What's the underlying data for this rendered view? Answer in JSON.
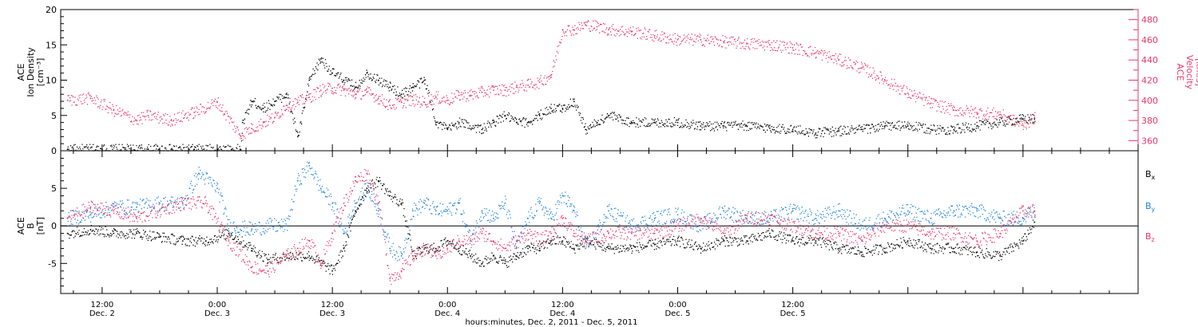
{
  "chart_data": [
    {
      "type": "scatter",
      "panel": "ion-density-velocity",
      "ylabel_lines": [
        "ACE",
        "Ion Density",
        "[cm⁻³]"
      ],
      "ylim": [
        0,
        20
      ],
      "yticks": [
        0,
        5,
        10,
        15,
        20
      ],
      "y2label_lines": [
        "ACE",
        "Velocity",
        "[km/s]"
      ],
      "y2lim": [
        350,
        490
      ],
      "y2ticks": [
        360,
        380,
        400,
        420,
        440,
        460,
        480
      ],
      "series": [
        {
          "axis": "left",
          "color": "#000000",
          "x": [
            -0.15,
            0,
            0.1,
            0.2,
            0.3,
            0.4,
            0.5,
            0.6,
            0.61,
            0.65,
            0.7,
            0.75,
            0.8,
            0.85,
            0.9,
            0.95,
            1.0,
            1.05,
            1.1,
            1.15,
            1.2,
            1.25,
            1.3,
            1.35,
            1.4,
            1.45,
            1.5,
            1.55,
            1.65,
            1.7,
            1.75,
            1.8,
            1.85,
            1.9,
            1.95,
            2.0,
            2.05,
            2.1,
            2.15,
            2.2,
            2.3,
            2.4,
            2.5,
            2.6,
            2.7,
            2.8,
            2.9,
            3.0,
            3.1,
            3.2,
            3.3,
            3.4,
            3.5,
            3.6,
            3.7,
            3.8,
            3.9,
            4.0,
            4.05
          ],
          "y": [
            0.2,
            0.2,
            0.2,
            0.2,
            0.2,
            0.2,
            0.2,
            0.2,
            4,
            7,
            6,
            7,
            8,
            2,
            10,
            13,
            11,
            10,
            9,
            11,
            10,
            9,
            8,
            9,
            10,
            4,
            3,
            4,
            3,
            4,
            5,
            4,
            4,
            5,
            6,
            6,
            7,
            3,
            4,
            5,
            4,
            4,
            4,
            3.5,
            3.5,
            3.5,
            3.2,
            3,
            2.5,
            2.8,
            3,
            3.5,
            3.5,
            3,
            3,
            3.5,
            4,
            4.5,
            4.5
          ]
        },
        {
          "axis": "right",
          "color": "#e8386a",
          "x": [
            -0.15,
            -0.05,
            0.05,
            0.15,
            0.2,
            0.3,
            0.4,
            0.5,
            0.6,
            0.65,
            0.7,
            0.75,
            0.8,
            0.85,
            0.9,
            0.95,
            1.0,
            1.05,
            1.1,
            1.15,
            1.2,
            1.25,
            1.3,
            1.35,
            1.4,
            1.45,
            1.5,
            1.55,
            1.6,
            1.65,
            1.7,
            1.75,
            1.8,
            1.85,
            1.9,
            1.95,
            2.0,
            2.05,
            2.1,
            2.15,
            2.2,
            2.3,
            2.4,
            2.5,
            2.6,
            2.7,
            2.8,
            2.9,
            3.0,
            3.1,
            3.2,
            3.3,
            3.4,
            3.5,
            3.6,
            3.7,
            3.8,
            3.9,
            4.0,
            4.05
          ],
          "y": [
            400,
            402,
            390,
            380,
            385,
            380,
            388,
            398,
            365,
            372,
            378,
            383,
            395,
            398,
            403,
            410,
            412,
            410,
            406,
            408,
            402,
            395,
            398,
            400,
            398,
            403,
            400,
            405,
            405,
            408,
            410,
            410,
            413,
            415,
            418,
            425,
            470,
            470,
            475,
            473,
            470,
            468,
            464,
            460,
            460,
            458,
            456,
            455,
            452,
            447,
            440,
            432,
            420,
            407,
            397,
            390,
            388,
            386,
            375,
            383
          ]
        }
      ]
    },
    {
      "type": "scatter",
      "panel": "imf-components",
      "ylabel_lines": [
        "ACE",
        "B",
        "[nT]"
      ],
      "ylim": [
        -9,
        10
      ],
      "yticks": [
        -5,
        0,
        5
      ],
      "legend": [
        {
          "label": "B",
          "sub": "x",
          "color": "#000000"
        },
        {
          "label": "B",
          "sub": "y",
          "color": "#1e82dc"
        },
        {
          "label": "B",
          "sub": "z",
          "color": "#e8386a"
        }
      ],
      "series": [
        {
          "name": "Bx",
          "color": "#000000",
          "x": [
            -0.15,
            -0.05,
            0.05,
            0.15,
            0.25,
            0.35,
            0.45,
            0.55,
            0.65,
            0.72,
            0.8,
            0.9,
            1.0,
            1.05,
            1.1,
            1.15,
            1.2,
            1.25,
            1.3,
            1.35,
            1.4,
            1.45,
            1.5,
            1.55,
            1.6,
            1.65,
            1.7,
            1.75,
            1.8,
            1.85,
            1.9,
            1.95,
            2.0,
            2.05,
            2.1,
            2.2,
            2.3,
            2.4,
            2.5,
            2.6,
            2.7,
            2.8,
            2.9,
            3.0,
            3.1,
            3.2,
            3.3,
            3.4,
            3.5,
            3.6,
            3.7,
            3.8,
            3.9,
            4.0,
            4.05
          ],
          "y": [
            -1,
            -0.5,
            -1,
            -1,
            -1.5,
            -2,
            -2,
            -1,
            -3,
            -4.5,
            -4,
            -4,
            -6,
            -3,
            2,
            5,
            6,
            4,
            3,
            -4,
            -3,
            -3,
            -2,
            -3,
            -4,
            -5,
            -4,
            -5,
            -4,
            -3,
            -3,
            -2,
            -2,
            -3,
            -2,
            -3,
            -3,
            -2.5,
            -2,
            -3,
            -2,
            -2,
            -1,
            -2,
            -2,
            -3,
            -3.5,
            -3,
            -2,
            -3,
            -3,
            -3.5,
            -4,
            -2,
            0.5
          ]
        },
        {
          "name": "By",
          "color": "#1e82dc",
          "x": [
            -0.15,
            -0.05,
            0.05,
            0.15,
            0.25,
            0.35,
            0.42,
            0.5,
            0.55,
            0.65,
            0.72,
            0.8,
            0.85,
            0.9,
            0.95,
            1.0,
            1.05,
            1.1,
            1.15,
            1.2,
            1.25,
            1.3,
            1.35,
            1.4,
            1.45,
            1.5,
            1.55,
            1.6,
            1.65,
            1.7,
            1.75,
            1.8,
            1.85,
            1.9,
            1.95,
            2.0,
            2.05,
            2.1,
            2.2,
            2.3,
            2.4,
            2.5,
            2.6,
            2.7,
            2.8,
            2.9,
            3.0,
            3.1,
            3.2,
            3.3,
            3.4,
            3.5,
            3.6,
            3.7,
            3.8,
            3.9,
            4.0,
            4.05
          ],
          "y": [
            1,
            1.5,
            2.5,
            2.5,
            3,
            3,
            7,
            5,
            0,
            -0.5,
            0,
            0,
            6,
            8,
            5,
            3,
            -1,
            3,
            5,
            2,
            -3,
            -4,
            2,
            3,
            2,
            2,
            3,
            -2,
            2,
            1,
            3,
            -3,
            1,
            3,
            1,
            4,
            2,
            -3,
            2,
            0,
            1,
            1.5,
            0,
            2,
            1,
            1,
            2,
            1,
            2,
            0,
            1,
            2,
            1,
            2,
            2,
            1,
            1,
            2
          ]
        },
        {
          "name": "Bz",
          "color": "#e8386a",
          "x": [
            -0.15,
            -0.05,
            0.05,
            0.15,
            0.25,
            0.35,
            0.45,
            0.55,
            0.65,
            0.72,
            0.8,
            0.85,
            0.9,
            0.95,
            1.0,
            1.05,
            1.1,
            1.15,
            1.2,
            1.25,
            1.3,
            1.35,
            1.4,
            1.45,
            1.5,
            1.55,
            1.6,
            1.65,
            1.7,
            1.75,
            1.8,
            1.85,
            1.9,
            1.95,
            2.0,
            2.05,
            2.1,
            2.2,
            2.3,
            2.4,
            2.5,
            2.6,
            2.7,
            2.8,
            2.9,
            3.0,
            3.1,
            3.2,
            3.3,
            3.4,
            3.5,
            3.6,
            3.7,
            3.8,
            3.9,
            4.0,
            4.05
          ],
          "y": [
            1,
            2.5,
            2,
            1,
            2,
            3,
            3,
            -2,
            -5.5,
            -6,
            -4,
            -3,
            -2,
            -5,
            -1,
            3,
            6,
            7,
            3,
            -7,
            -6,
            -4,
            -3,
            -4,
            -3,
            -2,
            -2,
            -1,
            -2,
            -3,
            -2,
            -1,
            -2,
            -1,
            1,
            -1,
            -2,
            -1,
            -1,
            -1,
            0,
            1,
            -1,
            1,
            1,
            0,
            -1,
            -1,
            -2,
            0,
            0,
            -1,
            -1,
            -2,
            -1,
            2,
            2
          ]
        }
      ]
    }
  ],
  "time_axis": {
    "xlim": [
      -0.18,
      4.5
    ],
    "xlabel": "hours:minutes, Dec.  2, 2011 - Dec.  5, 2011",
    "ticks": [
      {
        "x": 0,
        "time": "12:00",
        "date": "Dec. 2"
      },
      {
        "x": 0.5,
        "time": "0:00",
        "date": "Dec. 3"
      },
      {
        "x": 1,
        "time": "12:00",
        "date": "Dec. 3"
      },
      {
        "x": 1.5,
        "time": "0:00",
        "date": "Dec. 4"
      },
      {
        "x": 2,
        "time": "12:00",
        "date": "Dec. 4"
      },
      {
        "x": 2.5,
        "time": "0:00",
        "date": "Dec. 5"
      },
      {
        "x": 3,
        "time": "12:00",
        "date": "Dec. 5"
      }
    ]
  }
}
